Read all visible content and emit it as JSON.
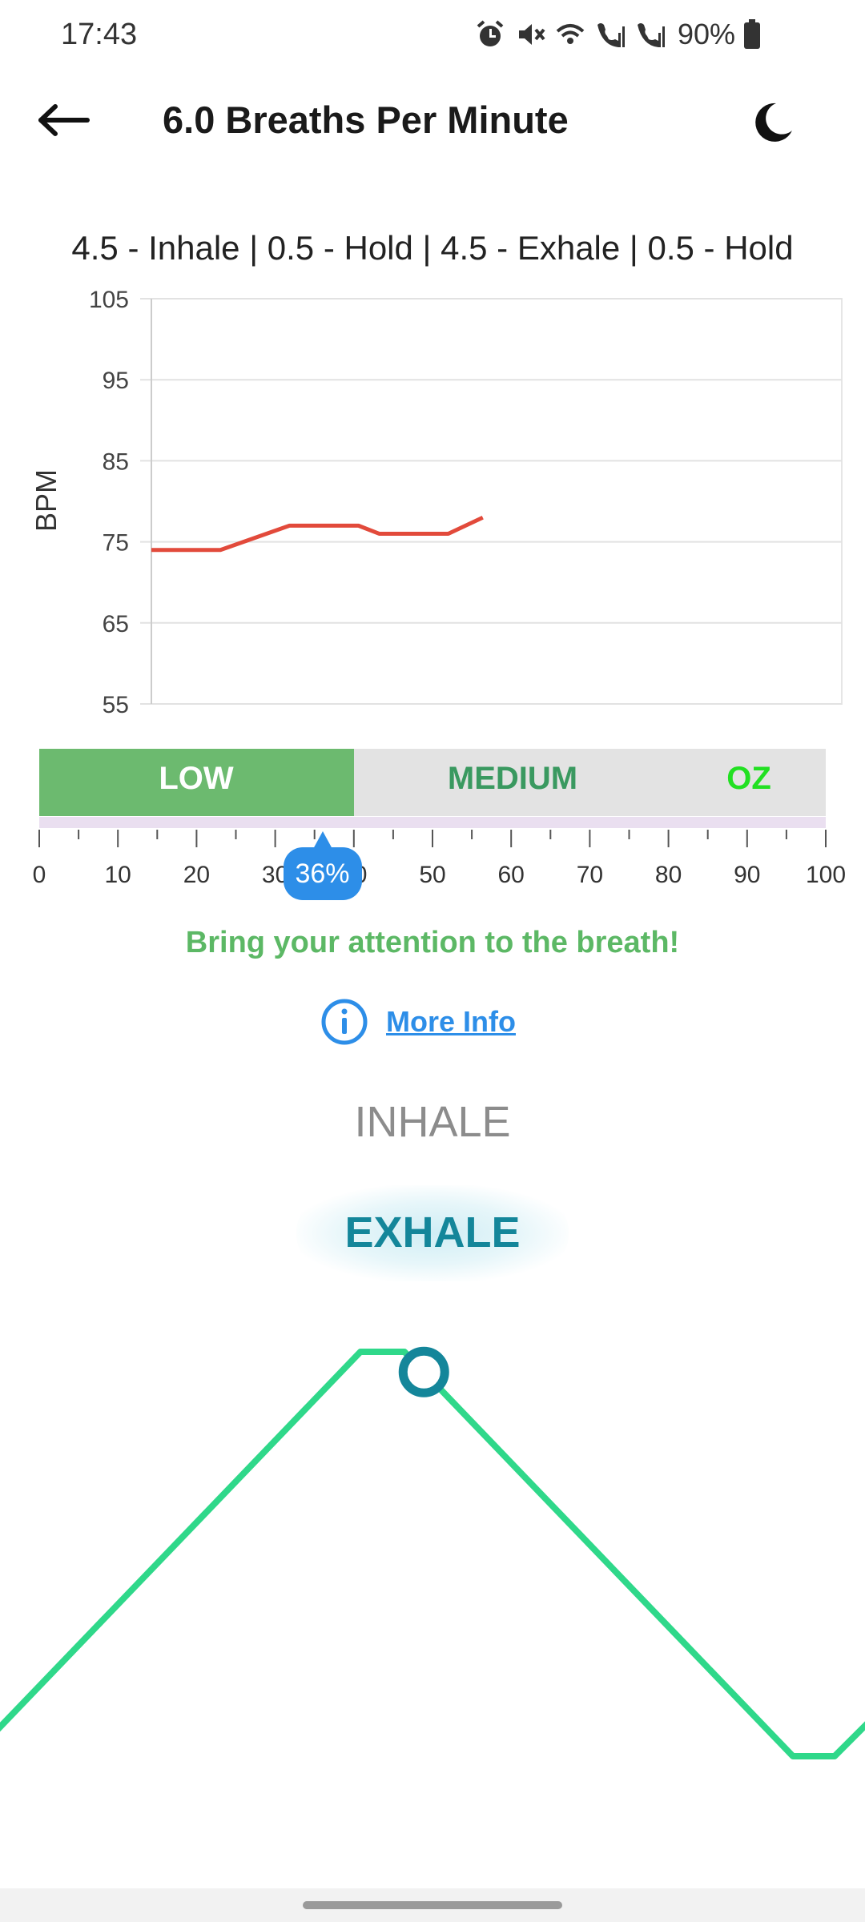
{
  "status_bar": {
    "time": "17:43",
    "battery": "90%",
    "icons": [
      "alarm-icon",
      "mute-icon",
      "wifi-calling-icon",
      "sim1-signal-icon",
      "sim2-signal-icon",
      "battery-icon"
    ]
  },
  "app_bar": {
    "title": "6.0 Breaths Per Minute",
    "back_icon": "arrow-left-icon",
    "theme_icon": "moon-icon"
  },
  "pattern": "4.5 - Inhale | 0.5 - Hold | 4.5 - Exhale | 0.5 - Hold",
  "chart_data": {
    "type": "line",
    "ylabel": "BPM",
    "xlabel": "",
    "ylim": [
      55,
      105
    ],
    "yticks": [
      "105",
      "95",
      "85",
      "75",
      "65",
      "55"
    ],
    "grid": true,
    "series": [
      {
        "color": "#e24a3b",
        "points": [
          [
            0,
            74
          ],
          [
            10,
            74
          ],
          [
            20,
            77
          ],
          [
            30,
            77
          ],
          [
            33,
            76
          ],
          [
            43,
            76
          ],
          [
            48,
            78
          ]
        ]
      }
    ]
  },
  "zones": {
    "low": "LOW",
    "medium": "MEDIUM",
    "oz": "OZ",
    "low_fraction": 0.4,
    "colors": {
      "low": "#6cba6f",
      "medium": "#3a9960",
      "oz": "#22e022"
    }
  },
  "scale": {
    "labels": [
      "0",
      "10",
      "20",
      "30",
      "40",
      "50",
      "60",
      "70",
      "80",
      "90",
      "100"
    ],
    "value_label": "36%",
    "value": 36
  },
  "message": "Bring your attention to the breath!",
  "info": {
    "link": "More Info",
    "icon": "info-icon"
  },
  "phases": {
    "inhale": "INHALE",
    "exhale": "EXHALE",
    "active": "exhale"
  },
  "wave": {
    "color": "#2fd88a",
    "marker_color": "#14869a",
    "progress": 0.05
  }
}
